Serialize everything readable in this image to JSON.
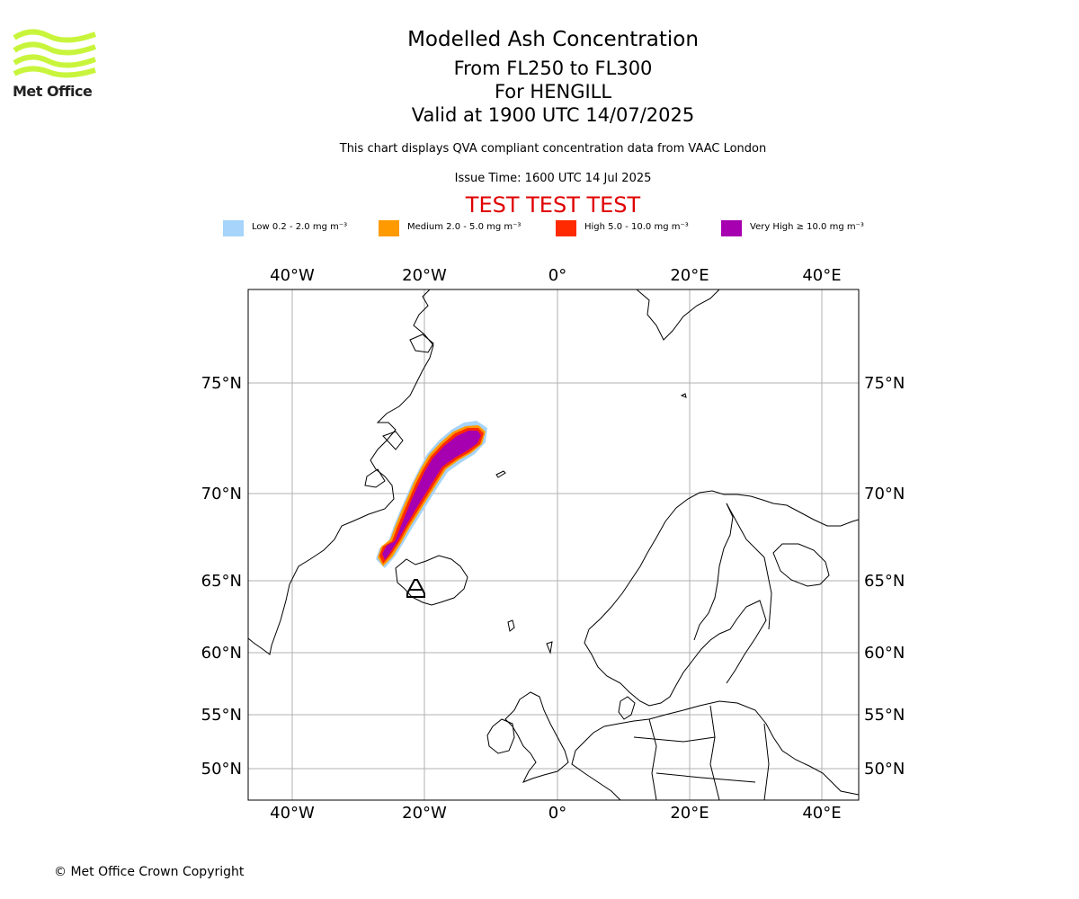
{
  "logo": {
    "text": "Met Office",
    "color": "#c8f53c"
  },
  "header": {
    "title": "Modelled Ash Concentration",
    "levels": "From FL250 to FL300",
    "volcano": "For HENGILL",
    "valid": "Valid at 1900 UTC 14/07/2025",
    "compliance": "This chart displays QVA compliant concentration data from VAAC London",
    "issue_time": "Issue Time: 1600 UTC 14 Jul 2025",
    "test_banner": "TEST TEST TEST",
    "test_color": "#e00000"
  },
  "legend": [
    {
      "label": "Low 0.2 - 2.0 mg m⁻³",
      "color": "#a6d4fa"
    },
    {
      "label": "Medium 2.0 - 5.0 mg m⁻³",
      "color": "#ff9a00"
    },
    {
      "label": "High 5.0 - 10.0 mg m⁻³",
      "color": "#ff2a00"
    },
    {
      "label": "Very High ≥ 10.0 mg m⁻³",
      "color": "#a600b0"
    }
  ],
  "map": {
    "lon_ticks": [
      "40°W",
      "20°W",
      "0°",
      "20°E",
      "40°E"
    ],
    "lat_ticks": [
      "75°N",
      "70°N",
      "65°N",
      "60°N",
      "55°N",
      "50°N"
    ]
  },
  "footer": {
    "copyright": "© Met Office Crown Copyright"
  }
}
